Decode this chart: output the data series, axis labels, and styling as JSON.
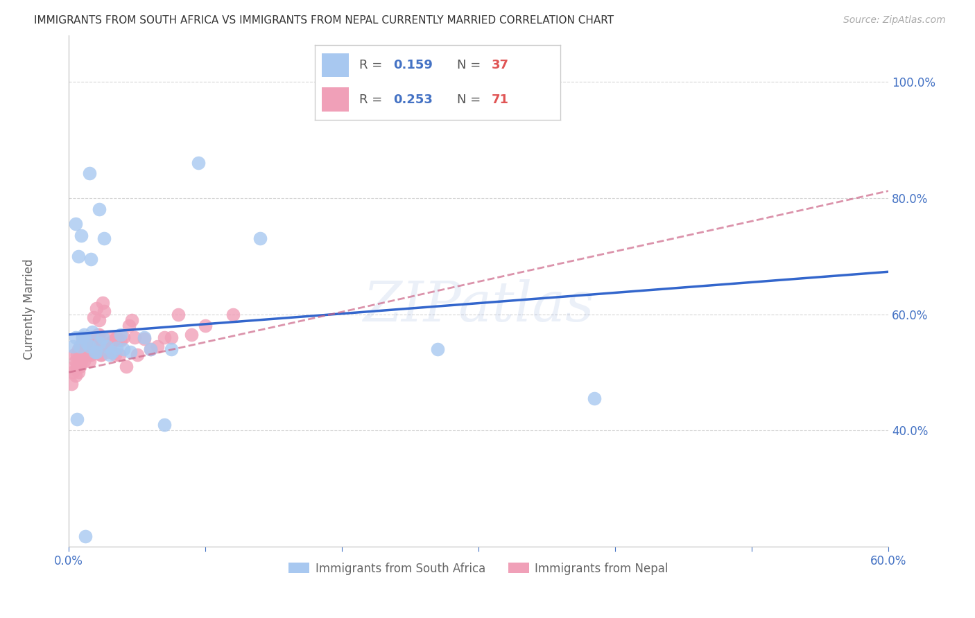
{
  "title": "IMMIGRANTS FROM SOUTH AFRICA VS IMMIGRANTS FROM NEPAL CURRENTLY MARRIED CORRELATION CHART",
  "source": "Source: ZipAtlas.com",
  "ylabel": "Currently Married",
  "x_min": 0.0,
  "x_max": 0.6,
  "y_min": 0.2,
  "y_max": 1.08,
  "y_ticks": [
    0.4,
    0.6,
    0.8,
    1.0
  ],
  "y_tick_labels": [
    "40.0%",
    "60.0%",
    "80.0%",
    "100.0%"
  ],
  "x_ticks": [
    0.0,
    0.1,
    0.2,
    0.3,
    0.4,
    0.5,
    0.6
  ],
  "x_tick_labels": [
    "0.0%",
    "",
    "",
    "",
    "",
    "",
    "60.0%"
  ],
  "series1_label": "Immigrants from South Africa",
  "series2_label": "Immigrants from Nepal",
  "series1_color": "#a8c8f0",
  "series2_color": "#f0a0b8",
  "line1_color": "#3366cc",
  "line2_color": "#cc6688",
  "watermark": "ZIPatlas",
  "background_color": "#ffffff",
  "series1_x": [
    0.003,
    0.005,
    0.005,
    0.007,
    0.008,
    0.009,
    0.01,
    0.01,
    0.011,
    0.013,
    0.015,
    0.016,
    0.017,
    0.019,
    0.02,
    0.022,
    0.022,
    0.025,
    0.026,
    0.028,
    0.03,
    0.032,
    0.035,
    0.038,
    0.04,
    0.045,
    0.055,
    0.06,
    0.07,
    0.075,
    0.095,
    0.14,
    0.27,
    0.385,
    0.015,
    0.006,
    0.012
  ],
  "series1_y": [
    0.545,
    0.56,
    0.755,
    0.7,
    0.545,
    0.735,
    0.56,
    0.56,
    0.565,
    0.55,
    0.545,
    0.695,
    0.57,
    0.535,
    0.535,
    0.78,
    0.55,
    0.56,
    0.73,
    0.545,
    0.53,
    0.535,
    0.542,
    0.565,
    0.54,
    0.535,
    0.56,
    0.54,
    0.41,
    0.54,
    0.86,
    0.73,
    0.54,
    0.455,
    0.842,
    0.42,
    0.218
  ],
  "series2_x": [
    0.002,
    0.003,
    0.004,
    0.004,
    0.005,
    0.005,
    0.006,
    0.006,
    0.007,
    0.007,
    0.008,
    0.008,
    0.009,
    0.009,
    0.01,
    0.01,
    0.011,
    0.011,
    0.012,
    0.012,
    0.013,
    0.013,
    0.014,
    0.014,
    0.015,
    0.015,
    0.016,
    0.016,
    0.017,
    0.017,
    0.018,
    0.018,
    0.019,
    0.019,
    0.02,
    0.02,
    0.021,
    0.021,
    0.022,
    0.022,
    0.023,
    0.024,
    0.025,
    0.026,
    0.027,
    0.028,
    0.029,
    0.03,
    0.031,
    0.032,
    0.033,
    0.034,
    0.035,
    0.036,
    0.037,
    0.038,
    0.04,
    0.042,
    0.044,
    0.046,
    0.048,
    0.05,
    0.055,
    0.06,
    0.065,
    0.07,
    0.075,
    0.08,
    0.09,
    0.1,
    0.12
  ],
  "series2_y": [
    0.48,
    0.5,
    0.51,
    0.53,
    0.495,
    0.52,
    0.51,
    0.53,
    0.5,
    0.54,
    0.51,
    0.53,
    0.52,
    0.545,
    0.54,
    0.555,
    0.52,
    0.545,
    0.53,
    0.555,
    0.545,
    0.56,
    0.53,
    0.55,
    0.52,
    0.54,
    0.53,
    0.545,
    0.545,
    0.56,
    0.595,
    0.54,
    0.54,
    0.56,
    0.61,
    0.555,
    0.56,
    0.565,
    0.59,
    0.565,
    0.53,
    0.53,
    0.62,
    0.605,
    0.545,
    0.54,
    0.535,
    0.55,
    0.56,
    0.535,
    0.555,
    0.53,
    0.56,
    0.555,
    0.53,
    0.555,
    0.56,
    0.51,
    0.58,
    0.59,
    0.56,
    0.53,
    0.558,
    0.54,
    0.545,
    0.56,
    0.56,
    0.6,
    0.565,
    0.58,
    0.6
  ],
  "line1_intercept": 0.565,
  "line1_slope": 0.18,
  "line2_intercept": 0.5,
  "line2_slope": 0.52
}
